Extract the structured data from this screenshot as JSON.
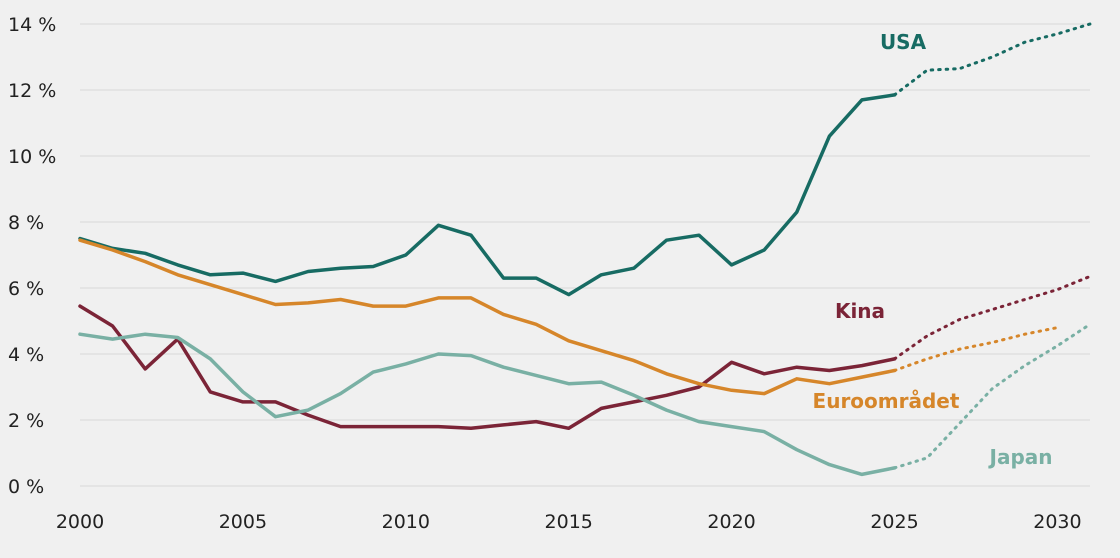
{
  "chart_data": {
    "type": "line",
    "title": "",
    "xlabel": "",
    "ylabel": "",
    "xlim": [
      2000,
      2031
    ],
    "ylim": [
      0,
      14
    ],
    "grid": true,
    "legend": "inline labels",
    "x_ticks": [
      "2000",
      "2005",
      "2010",
      "2015",
      "2020",
      "2025",
      "2030"
    ],
    "y_ticks": [
      "0 %",
      "2 %",
      "4 %",
      "6 %",
      "8 %",
      "10 %",
      "12 %",
      "14 %"
    ],
    "series": [
      {
        "name": "USA",
        "color": "#176b63",
        "x": [
          2000,
          2001,
          2002,
          2003,
          2004,
          2005,
          2006,
          2007,
          2008,
          2009,
          2010,
          2011,
          2012,
          2013,
          2014,
          2015,
          2016,
          2017,
          2018,
          2019,
          2020,
          2021,
          2022,
          2023,
          2024,
          2025
        ],
        "values": [
          7.5,
          7.2,
          7.05,
          6.7,
          6.4,
          6.45,
          6.2,
          6.5,
          6.6,
          6.65,
          7.0,
          7.9,
          7.6,
          6.3,
          6.3,
          5.8,
          6.4,
          6.6,
          7.45,
          7.6,
          6.7,
          7.15,
          8.3,
          10.6,
          11.7,
          11.85
        ],
        "forecast": {
          "x": [
            2025,
            2026,
            2027,
            2028,
            2029,
            2030,
            2031
          ],
          "values": [
            11.85,
            12.6,
            12.65,
            13.0,
            13.45,
            13.7,
            14.0
          ]
        }
      },
      {
        "name": "Kina",
        "color": "#7b2437",
        "x": [
          2000,
          2001,
          2002,
          2003,
          2004,
          2005,
          2006,
          2007,
          2008,
          2009,
          2010,
          2011,
          2012,
          2013,
          2014,
          2015,
          2016,
          2017,
          2018,
          2019,
          2020,
          2021,
          2022,
          2023,
          2024,
          2025
        ],
        "values": [
          5.45,
          4.85,
          3.55,
          4.45,
          2.85,
          2.55,
          2.55,
          2.15,
          1.8,
          1.8,
          1.8,
          1.8,
          1.75,
          1.85,
          1.95,
          1.75,
          2.35,
          2.55,
          2.75,
          3.0,
          3.75,
          3.4,
          3.6,
          3.5,
          3.65,
          3.85
        ],
        "forecast": {
          "x": [
            2025,
            2026,
            2027,
            2028,
            2029,
            2030,
            2031
          ],
          "values": [
            3.85,
            4.55,
            5.05,
            5.35,
            5.65,
            5.95,
            6.35
          ]
        }
      },
      {
        "name": "Euroområdet",
        "color": "#d6862a",
        "x": [
          2000,
          2001,
          2002,
          2003,
          2004,
          2005,
          2006,
          2007,
          2008,
          2009,
          2010,
          2011,
          2012,
          2013,
          2014,
          2015,
          2016,
          2017,
          2018,
          2019,
          2020,
          2021,
          2022,
          2023,
          2024,
          2025
        ],
        "values": [
          7.45,
          7.15,
          6.8,
          6.4,
          6.1,
          5.8,
          5.5,
          5.55,
          5.65,
          5.45,
          5.45,
          5.7,
          5.7,
          5.2,
          4.9,
          4.4,
          4.1,
          3.8,
          3.4,
          3.1,
          2.9,
          2.8,
          3.25,
          3.1,
          3.3,
          3.5
        ],
        "forecast": {
          "x": [
            2025,
            2026,
            2027,
            2028,
            2029,
            2030
          ],
          "values": [
            3.5,
            3.85,
            4.15,
            4.35,
            4.6,
            4.8
          ]
        }
      },
      {
        "name": "Japan",
        "color": "#79b0a4",
        "x": [
          2000,
          2001,
          2002,
          2003,
          2004,
          2005,
          2006,
          2007,
          2008,
          2009,
          2010,
          2011,
          2012,
          2013,
          2014,
          2015,
          2016,
          2017,
          2018,
          2019,
          2020,
          2021,
          2022,
          2023,
          2024,
          2025
        ],
        "values": [
          4.6,
          4.45,
          4.6,
          4.5,
          3.85,
          2.85,
          2.1,
          2.3,
          2.8,
          3.45,
          3.7,
          4.0,
          3.95,
          3.6,
          3.35,
          3.1,
          3.15,
          2.75,
          2.3,
          1.95,
          1.8,
          1.65,
          1.1,
          0.65,
          0.35,
          0.55
        ],
        "forecast": {
          "x": [
            2025,
            2026,
            2027,
            2028,
            2029,
            2030,
            2031
          ],
          "values": [
            0.55,
            0.85,
            1.9,
            2.95,
            3.65,
            4.25,
            4.9
          ]
        }
      }
    ]
  }
}
